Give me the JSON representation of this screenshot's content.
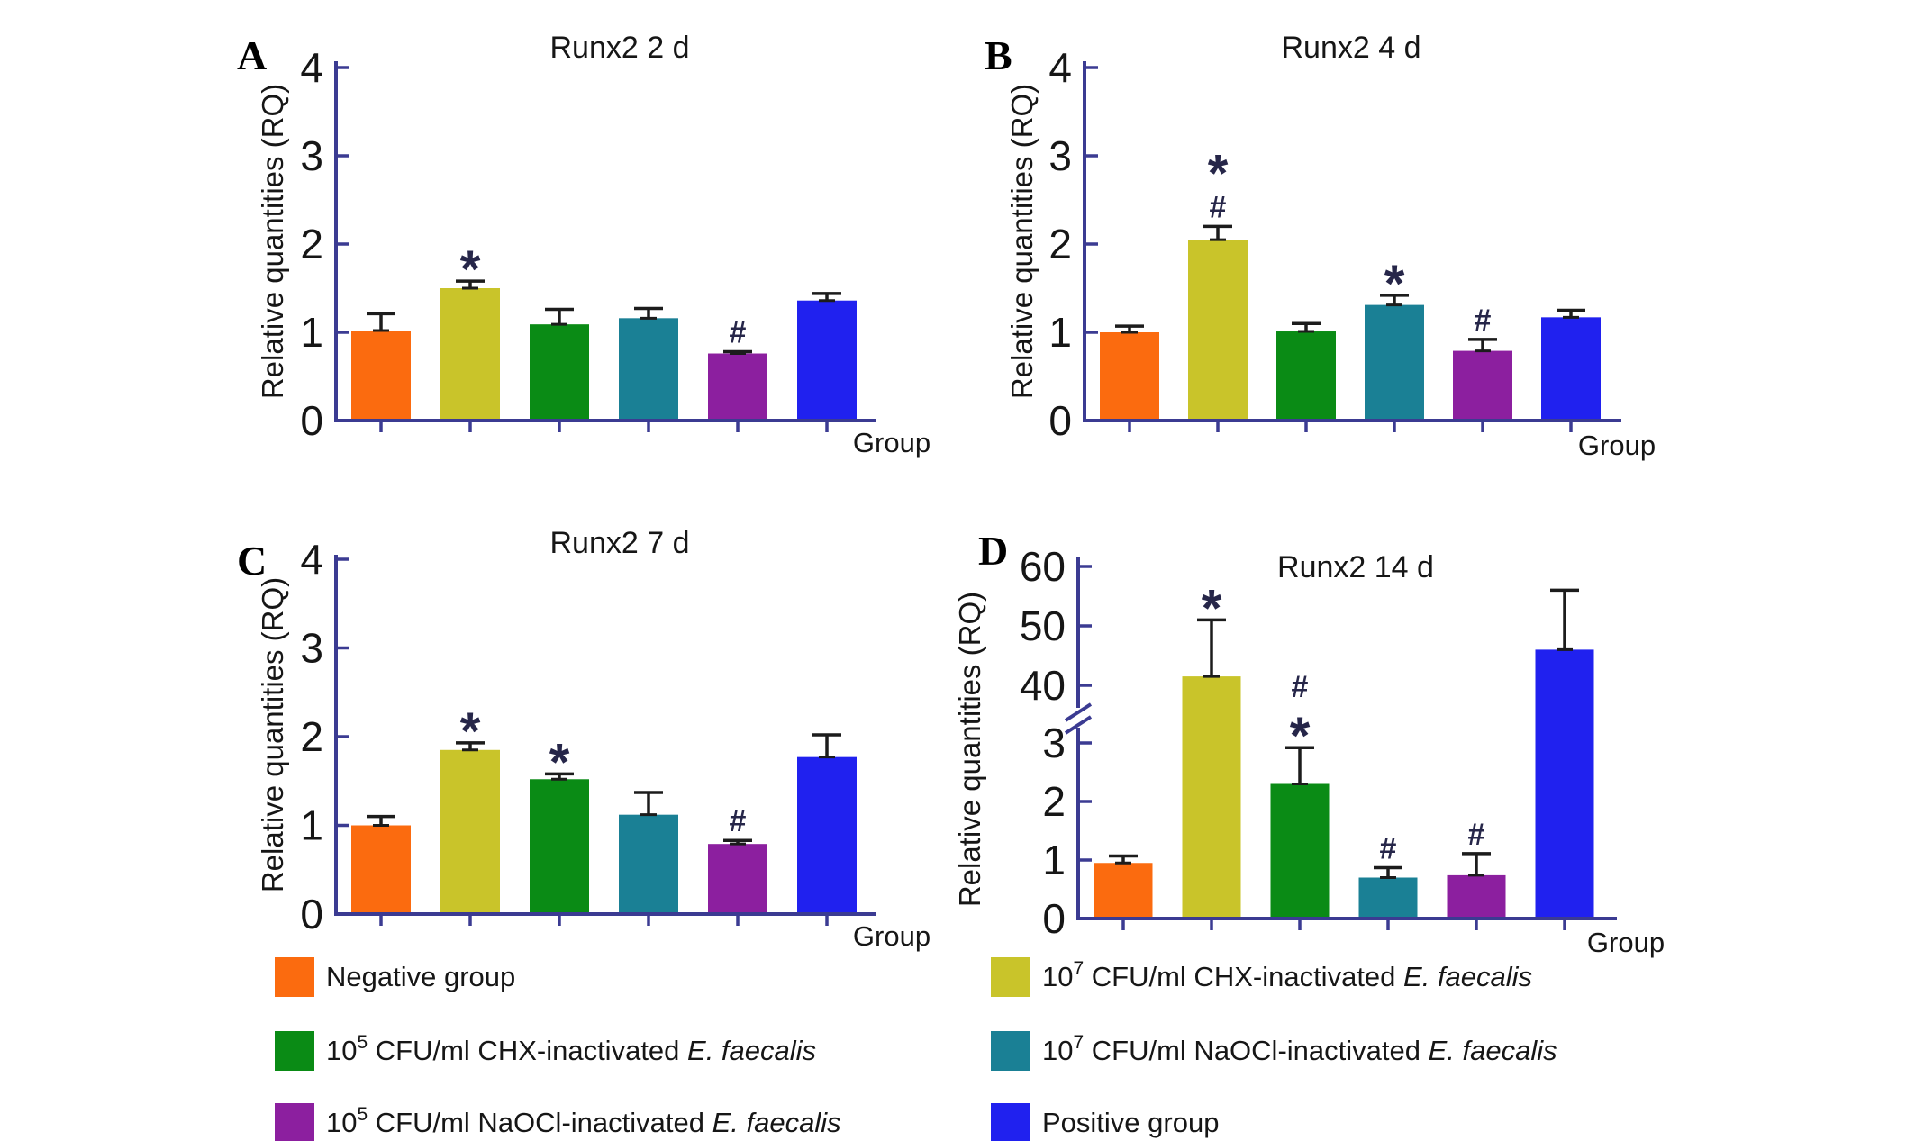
{
  "colors": {
    "negative": "#FB6B0F",
    "chx_1e7": "#C9C42A",
    "chx_1e5": "#0A8B15",
    "naocl_1e7": "#1A8095",
    "naocl_1e5": "#8C1F9F",
    "positive": "#2021EF",
    "axis": "#3B3B92",
    "error_bar": "#1C1C1C",
    "sig_symbol": "#262649",
    "text": "#161616"
  },
  "chart_data": [
    {
      "type": "bar",
      "panel_label": "A",
      "title": "Runx2 2 d",
      "xlabel": "Group",
      "ylabel": "Relative quantities (RQ)",
      "ylim": [
        0,
        4
      ],
      "yticks": [
        0,
        1,
        2,
        3,
        4
      ],
      "grid": false,
      "categories": [
        "Negative group",
        "10⁷ CFU/ml CHX-inactivated E. faecalis",
        "10⁵ CFU/ml CHX-inactivated E. faecalis",
        "10⁷ CFU/ml NaOCl-inactivated E. faecalis",
        "10⁵ CFU/ml NaOCl-inactivated E. faecalis",
        "Positive group"
      ],
      "color_keys": [
        "negative",
        "chx_1e7",
        "chx_1e5",
        "naocl_1e7",
        "naocl_1e5",
        "positive"
      ],
      "values": [
        1.02,
        1.5,
        1.09,
        1.16,
        0.76,
        1.36
      ],
      "errors": [
        0.19,
        0.08,
        0.17,
        0.11,
        0.02,
        0.08
      ],
      "sig": [
        [],
        [
          "*"
        ],
        [],
        [],
        [
          "#"
        ],
        []
      ]
    },
    {
      "type": "bar",
      "panel_label": "B",
      "title": "Runx2 4 d",
      "xlabel": "Group",
      "ylabel": "Relative quantities (RQ)",
      "ylim": [
        0,
        4
      ],
      "yticks": [
        0,
        1,
        2,
        3,
        4
      ],
      "grid": false,
      "categories": [
        "Negative group",
        "10⁷ CFU/ml CHX-inactivated E. faecalis",
        "10⁵ CFU/ml CHX-inactivated E. faecalis",
        "10⁷ CFU/ml NaOCl-inactivated E. faecalis",
        "10⁵ CFU/ml NaOCl-inactivated E. faecalis",
        "Positive group"
      ],
      "color_keys": [
        "negative",
        "chx_1e7",
        "chx_1e5",
        "naocl_1e7",
        "naocl_1e5",
        "positive"
      ],
      "values": [
        1.0,
        2.05,
        1.01,
        1.31,
        0.79,
        1.17
      ],
      "errors": [
        0.07,
        0.15,
        0.09,
        0.11,
        0.13,
        0.08
      ],
      "sig": [
        [],
        [
          "#",
          "*"
        ],
        [],
        [
          "*"
        ],
        [
          "#"
        ],
        []
      ]
    },
    {
      "type": "bar",
      "panel_label": "C",
      "title": "Runx2 7 d",
      "xlabel": "Group",
      "ylabel": "Relative quantities (RQ)",
      "ylim": [
        0,
        4
      ],
      "yticks": [
        0,
        1,
        2,
        3,
        4
      ],
      "grid": false,
      "categories": [
        "Negative group",
        "10⁷ CFU/ml CHX-inactivated E. faecalis",
        "10⁵ CFU/ml CHX-inactivated E. faecalis",
        "10⁷ CFU/ml NaOCl-inactivated E. faecalis",
        "10⁵ CFU/ml NaOCl-inactivated E. faecalis",
        "Positive group"
      ],
      "color_keys": [
        "negative",
        "chx_1e7",
        "chx_1e5",
        "naocl_1e7",
        "naocl_1e5",
        "positive"
      ],
      "values": [
        1.0,
        1.85,
        1.52,
        1.12,
        0.79,
        1.77
      ],
      "errors": [
        0.1,
        0.08,
        0.06,
        0.25,
        0.04,
        0.25
      ],
      "sig": [
        [],
        [
          "*"
        ],
        [
          "*"
        ],
        [],
        [
          "#"
        ],
        []
      ]
    },
    {
      "type": "bar",
      "panel_label": "D",
      "title": "Runx2 14 d",
      "xlabel": "Group",
      "ylabel": "Relative quantities (RQ)",
      "ylim": [
        0,
        60
      ],
      "yticks": [
        0,
        1,
        2,
        3,
        40,
        50,
        60
      ],
      "axis_break": [
        3.4,
        36.9
      ],
      "grid": false,
      "categories": [
        "Negative group",
        "10⁷ CFU/ml CHX-inactivated E. faecalis",
        "10⁵ CFU/ml CHX-inactivated E. faecalis",
        "10⁷ CFU/ml NaOCl-inactivated E. faecalis",
        "10⁵ CFU/ml NaOCl-inactivated E. faecalis",
        "Positive group"
      ],
      "color_keys": [
        "negative",
        "chx_1e7",
        "chx_1e5",
        "naocl_1e7",
        "naocl_1e5",
        "positive"
      ],
      "values": [
        0.95,
        41.5,
        2.3,
        0.7,
        0.74,
        46.0
      ],
      "errors": [
        0.12,
        9.5,
        0.62,
        0.17,
        0.37,
        10.0
      ],
      "sig": [
        [],
        [
          "*"
        ],
        [
          "*",
          "#"
        ],
        [
          "#"
        ],
        [
          "#"
        ],
        []
      ]
    }
  ],
  "legend": {
    "left": [
      {
        "color_key": "negative",
        "base": "Negative group"
      },
      {
        "color_key": "chx_1e5",
        "base": "10",
        "sup": "5",
        "rest": " CFU/ml CHX-inactivated ",
        "species": "E. faecalis"
      },
      {
        "color_key": "naocl_1e5",
        "base": "10",
        "sup": "5",
        "rest": " CFU/ml NaOCl-inactivated ",
        "species": "E. faecalis"
      }
    ],
    "right": [
      {
        "color_key": "chx_1e7",
        "base": "10",
        "sup": "7",
        "rest": " CFU/ml CHX-inactivated ",
        "species": "E. faecalis"
      },
      {
        "color_key": "naocl_1e7",
        "base": "10",
        "sup": "7",
        "rest": " CFU/ml NaOCl-inactivated ",
        "species": "E. faecalis"
      },
      {
        "color_key": "positive",
        "base": "Positive group"
      }
    ]
  }
}
